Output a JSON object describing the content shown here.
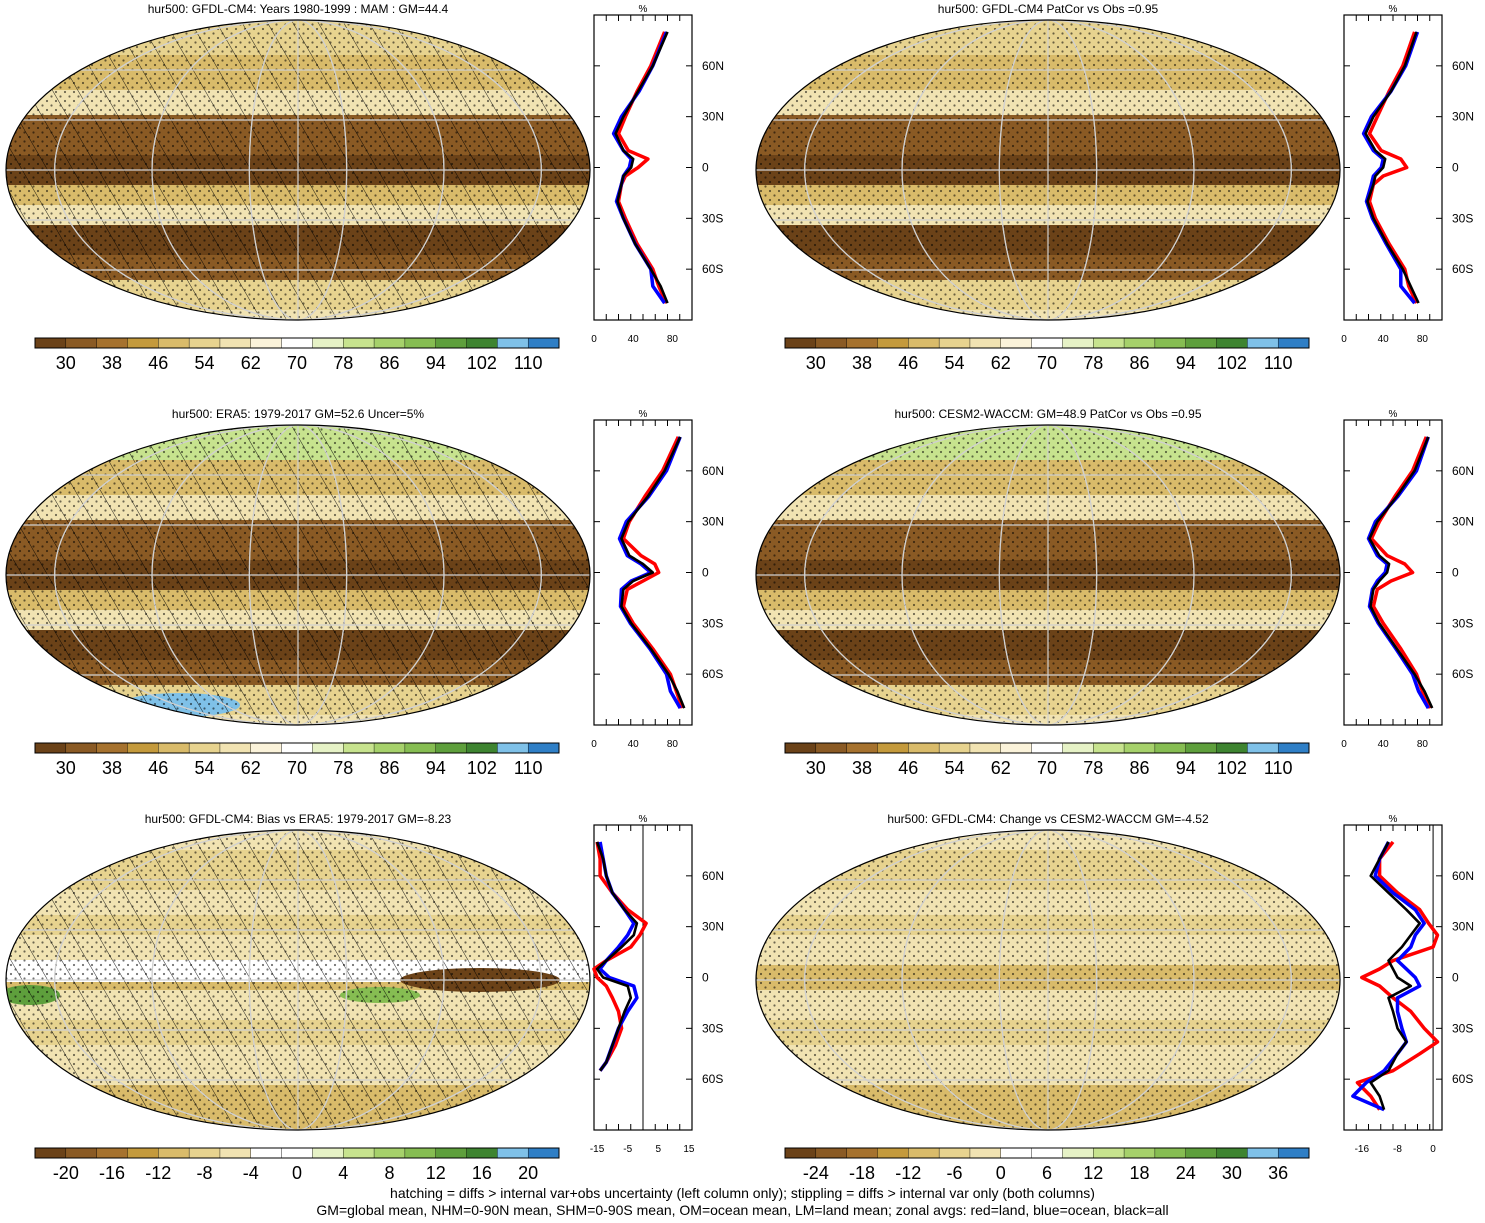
{
  "palettes": {
    "abs": [
      "#6b4218",
      "#8a5a24",
      "#a6722e",
      "#c49a3c",
      "#d9bb6a",
      "#e7d38f",
      "#f1e3b2",
      "#fbf3da",
      "#ffffff",
      "#e6f2c6",
      "#c7e38e",
      "#a6d16b",
      "#86bd52",
      "#5e9f3c",
      "#3e8430",
      "#7fc1e8",
      "#2f7fc6"
    ],
    "bias": [
      "#6b4218",
      "#8a5a24",
      "#a6722e",
      "#c49a3c",
      "#d9bb6a",
      "#e7d38f",
      "#f1e3b2",
      "#ffffff",
      "#ffffff",
      "#e6f2c6",
      "#c7e38e",
      "#a6d16b",
      "#86bd52",
      "#5e9f3c",
      "#3e8430",
      "#7fc1e8",
      "#2f7fc6"
    ],
    "profile_colors": {
      "land": "#ff0000",
      "ocean": "#0000ff",
      "all": "#000000"
    }
  },
  "footer": {
    "line1": "hatching = diffs > internal var+obs uncertainty (left column only); stippling = diffs > internal var only (both columns)",
    "line2": "GM=global mean, NHM=0-90N mean, SHM=0-90S mean, OM=ocean mean, LM=land mean; zonal avgs: red=land, blue=ocean, black=all"
  },
  "chart_data": [
    {
      "type": "heatmap",
      "title": "hur500: GFDL-CM4: Years 1980-1999 : MAM : GM=44.4",
      "colorbar_labels": [
        "30",
        "38",
        "46",
        "54",
        "62",
        "70",
        "78",
        "86",
        "94",
        "102",
        "110"
      ],
      "palette": "abs",
      "hatching": true,
      "stippling": true,
      "profile": {
        "xlabel": "%",
        "xticks": [
          "0",
          "40",
          "80"
        ],
        "xlim": [
          0,
          100
        ],
        "ylabels": [
          "60N",
          "30N",
          "0",
          "30S",
          "60S"
        ],
        "lat": [
          80,
          60,
          45,
          30,
          20,
          10,
          5,
          0,
          -5,
          -10,
          -20,
          -30,
          -45,
          -60,
          -70,
          -80
        ],
        "all": [
          75,
          60,
          45,
          30,
          22,
          30,
          40,
          38,
          30,
          28,
          24,
          30,
          42,
          58,
          68,
          75
        ],
        "land": [
          72,
          58,
          44,
          32,
          25,
          35,
          55,
          45,
          32,
          28,
          25,
          32,
          44,
          60,
          66,
          74
        ],
        "ocean": [
          74,
          60,
          46,
          28,
          20,
          30,
          38,
          36,
          30,
          28,
          23,
          30,
          42,
          58,
          60,
          72
        ]
      }
    },
    {
      "type": "heatmap",
      "title": "hur500: GFDL-CM4 PatCor vs Obs =0.95",
      "colorbar_labels": [
        "30",
        "38",
        "46",
        "54",
        "62",
        "70",
        "78",
        "86",
        "94",
        "102",
        "110"
      ],
      "palette": "abs",
      "hatching": false,
      "stippling": true,
      "profile": {
        "xlabel": "%",
        "xticks": [
          "0",
          "40",
          "80"
        ],
        "xlim": [
          0,
          100
        ],
        "ylabels": [
          "60N",
          "30N",
          "0",
          "30S",
          "60S"
        ],
        "lat": [
          80,
          60,
          45,
          30,
          20,
          10,
          5,
          0,
          -5,
          -10,
          -20,
          -30,
          -45,
          -60,
          -70,
          -80
        ],
        "all": [
          74,
          62,
          48,
          30,
          22,
          32,
          42,
          40,
          32,
          30,
          24,
          30,
          44,
          60,
          68,
          76
        ],
        "land": [
          72,
          60,
          46,
          34,
          26,
          38,
          58,
          64,
          40,
          30,
          26,
          32,
          46,
          62,
          66,
          74
        ],
        "ocean": [
          75,
          63,
          48,
          28,
          20,
          30,
          40,
          38,
          30,
          28,
          23,
          29,
          43,
          58,
          58,
          72
        ]
      }
    },
    {
      "type": "heatmap",
      "title": "hur500: ERA5: 1979-2017 GM=52.6 Uncer=5%",
      "colorbar_labels": [
        "30",
        "38",
        "46",
        "54",
        "62",
        "70",
        "78",
        "86",
        "94",
        "102",
        "110"
      ],
      "palette": "abs",
      "hatching": true,
      "stippling": true,
      "profile": {
        "xlabel": "%",
        "xticks": [
          "0",
          "40",
          "80"
        ],
        "xlim": [
          0,
          100
        ],
        "ylabels": [
          "60N",
          "30N",
          "0",
          "30S",
          "60S"
        ],
        "lat": [
          80,
          60,
          45,
          30,
          20,
          10,
          5,
          0,
          -5,
          -10,
          -20,
          -30,
          -45,
          -60,
          -70,
          -80
        ],
        "all": [
          88,
          72,
          55,
          35,
          28,
          36,
          50,
          60,
          40,
          30,
          28,
          38,
          58,
          76,
          85,
          92
        ],
        "land": [
          86,
          70,
          52,
          36,
          30,
          48,
          62,
          66,
          50,
          34,
          30,
          40,
          60,
          78,
          84,
          90
        ],
        "ocean": [
          88,
          74,
          56,
          33,
          26,
          34,
          48,
          58,
          38,
          28,
          27,
          37,
          57,
          74,
          78,
          88
        ]
      }
    },
    {
      "type": "heatmap",
      "title": "hur500: CESM2-WACCM: GM=48.9 PatCor vs Obs =0.95",
      "colorbar_labels": [
        "30",
        "38",
        "46",
        "54",
        "62",
        "70",
        "78",
        "86",
        "94",
        "102",
        "110"
      ],
      "palette": "abs",
      "hatching": false,
      "stippling": true,
      "profile": {
        "xlabel": "%",
        "xticks": [
          "0",
          "40",
          "80"
        ],
        "xlim": [
          0,
          100
        ],
        "ylabels": [
          "60N",
          "30N",
          "0",
          "30S",
          "60S"
        ],
        "lat": [
          80,
          60,
          45,
          30,
          20,
          10,
          5,
          0,
          -5,
          -10,
          -20,
          -30,
          -45,
          -60,
          -70,
          -80
        ],
        "all": [
          86,
          72,
          54,
          34,
          26,
          36,
          46,
          44,
          36,
          30,
          27,
          36,
          54,
          72,
          82,
          90
        ],
        "land": [
          84,
          70,
          52,
          36,
          28,
          44,
          62,
          70,
          48,
          34,
          30,
          40,
          58,
          74,
          80,
          88
        ],
        "ocean": [
          86,
          74,
          55,
          32,
          25,
          34,
          44,
          42,
          34,
          29,
          26,
          35,
          53,
          70,
          76,
          86
        ]
      }
    },
    {
      "type": "heatmap",
      "title": "hur500: GFDL-CM4: Bias vs ERA5: 1979-2017 GM=-8.23",
      "colorbar_labels": [
        "-20",
        "-16",
        "-12",
        "-8",
        "-4",
        "0",
        "4",
        "8",
        "12",
        "16",
        "20"
      ],
      "palette": "bias",
      "hatching": true,
      "stippling": true,
      "profile": {
        "xlabel": "%",
        "xticks": [
          "-15",
          "-5",
          "5",
          "15"
        ],
        "xlim": [
          -16,
          16
        ],
        "ylabels": [
          "60N",
          "30N",
          "0",
          "30S",
          "60S"
        ],
        "lat": [
          80,
          70,
          60,
          50,
          40,
          32,
          25,
          18,
          10,
          5,
          0,
          -5,
          -12,
          -20,
          -30,
          -40,
          -50,
          -55
        ],
        "all": [
          -15,
          -13,
          -12,
          -10,
          -6,
          -2,
          -3,
          -7,
          -12,
          -15,
          -13,
          -5,
          -4,
          -6,
          -8,
          -10,
          -12,
          -14
        ],
        "land": [
          -15,
          -14,
          -14,
          -10,
          -5,
          1,
          -1,
          -4,
          -12,
          -16,
          -15,
          -12,
          -10,
          -8,
          -7,
          -9,
          -12,
          -14
        ],
        "ocean": [
          -14,
          -13,
          -12,
          -10,
          -6,
          -3,
          -5,
          -8,
          -12,
          -14,
          -11,
          -3,
          -2,
          -5,
          -8,
          -10,
          -12,
          -14
        ]
      }
    },
    {
      "type": "heatmap",
      "title": "hur500: GFDL-CM4: Change vs CESM2-WACCM GM=-4.52",
      "colorbar_labels": [
        "-24",
        "-18",
        "-12",
        "-6",
        "0",
        "6",
        "12",
        "18",
        "24",
        "30",
        "36"
      ],
      "palette": "bias",
      "hatching": false,
      "stippling": true,
      "profile": {
        "xlabel": "%",
        "xticks": [
          "-16",
          "-8",
          "0"
        ],
        "xlim": [
          -20,
          2
        ],
        "ylabels": [
          "60N",
          "30N",
          "0",
          "30S",
          "60S"
        ],
        "lat": [
          80,
          70,
          60,
          50,
          40,
          32,
          25,
          18,
          10,
          5,
          0,
          -5,
          -12,
          -20,
          -30,
          -38,
          -45,
          -55,
          -62,
          -70,
          -78
        ],
        "all": [
          -10,
          -12,
          -14,
          -10,
          -6,
          -3,
          -5,
          -7,
          -10,
          -9,
          -8,
          -5,
          -10,
          -9,
          -8,
          -6,
          -8,
          -10,
          -14,
          -12,
          -11
        ],
        "land": [
          -9,
          -12,
          -12,
          -8,
          -3,
          -1,
          1,
          0,
          -9,
          -12,
          -16,
          -12,
          -9,
          -5,
          -2,
          1,
          -3,
          -9,
          -17,
          -14,
          -12
        ],
        "ocean": [
          -10,
          -12,
          -13,
          -9,
          -4,
          -2,
          -4,
          -5,
          -8,
          -6,
          -4,
          -3,
          -8,
          -8,
          -7,
          -6,
          -8,
          -11,
          -15,
          -18,
          -11
        ]
      }
    }
  ]
}
